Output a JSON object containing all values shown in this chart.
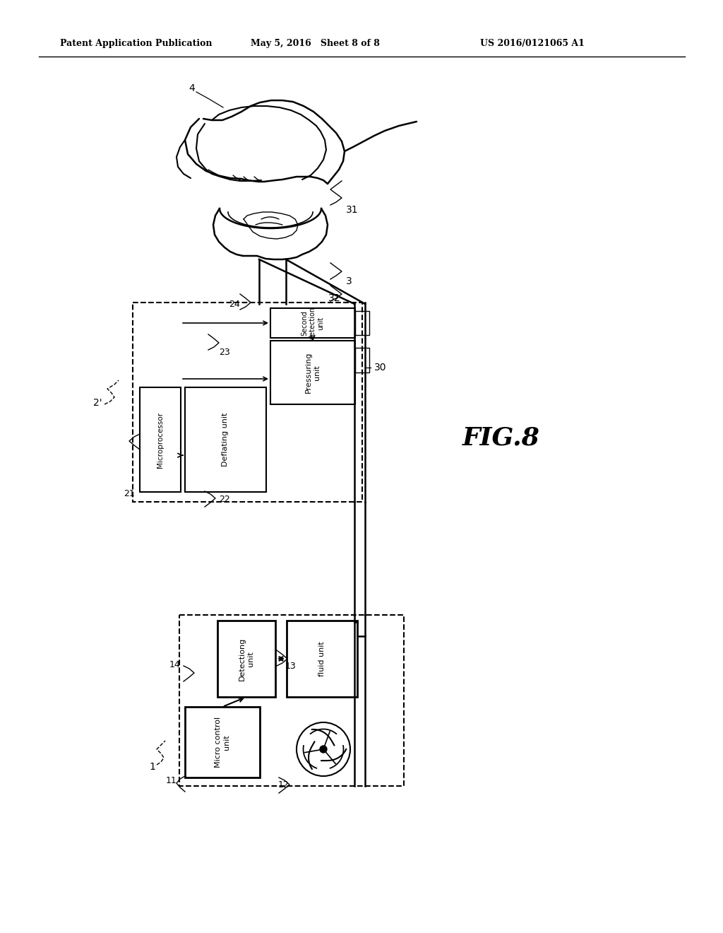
{
  "bg_color": "#ffffff",
  "header_left": "Patent Application Publication",
  "header_mid": "May 5, 2016   Sheet 8 of 8",
  "header_right": "US 2016/0121065 A1",
  "fig_label": "FIG.8",
  "box1_label": "1",
  "box2_label": "2'",
  "box1_inner_labels": {
    "micro_control": "Micro control\nunit",
    "detecting": "Detectiong\nunit",
    "fluid": "fluid unit",
    "num11": "11",
    "num12": "12",
    "num13": "13",
    "num14": "14"
  },
  "box2_inner_labels": {
    "microprocessor": "Microprocessor",
    "deflating": "Deflating unit",
    "pressuring": "Pressuring\nunit",
    "second_detect": "Second\ndetection\nunit",
    "num21": "21",
    "num22": "22",
    "num23": "23",
    "num24": "24"
  },
  "labels": {
    "label3": "3",
    "label4": "4",
    "label30": "30",
    "label31": "31",
    "label32": "32"
  }
}
